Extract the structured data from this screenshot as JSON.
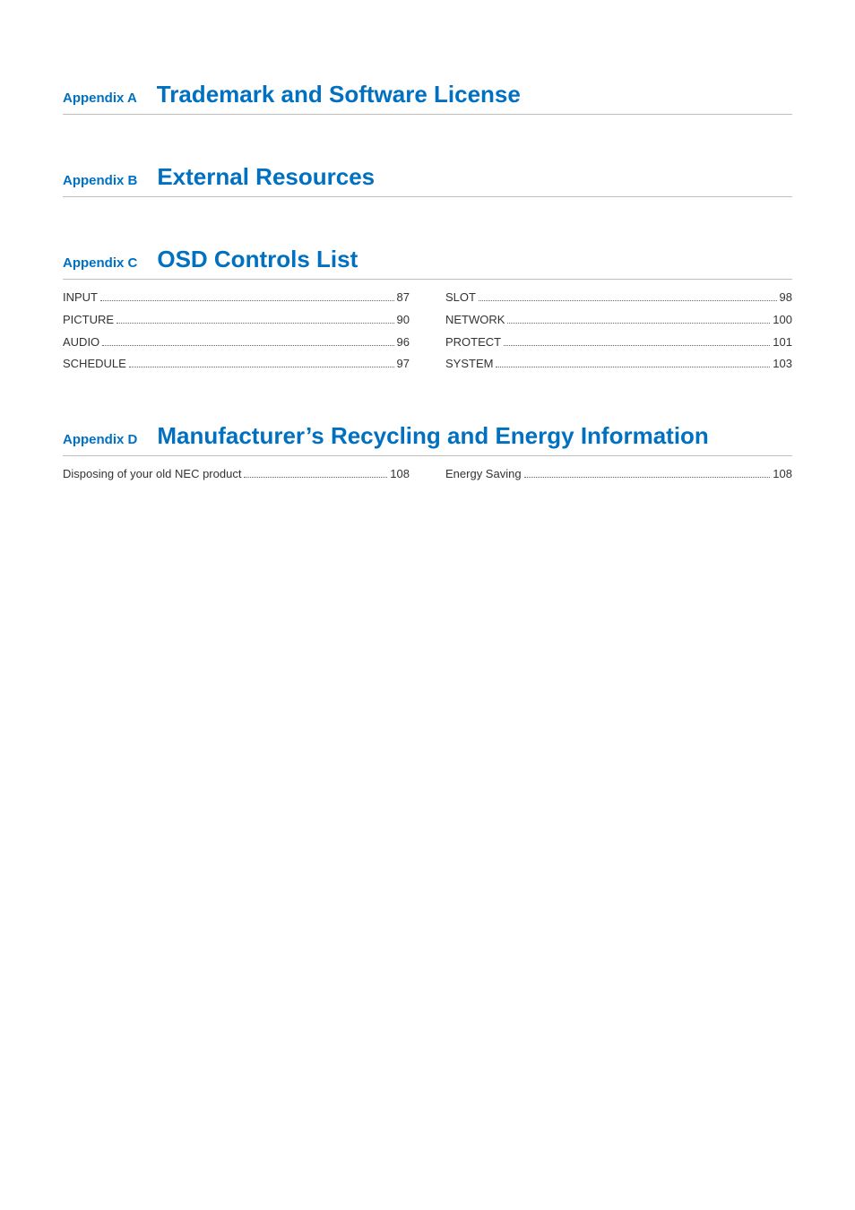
{
  "colors": {
    "heading_blue": "#0070c0",
    "text_body": "#333333",
    "rule_gray": "#bfbfbf",
    "dot_gray": "#666666",
    "background": "#ffffff"
  },
  "typography": {
    "appendix_label_fontsize": 15,
    "appendix_title_fontsize": 26,
    "toc_fontsize": 13,
    "font_family": "Arial, Helvetica, sans-serif"
  },
  "sections": [
    {
      "label": "Appendix A",
      "title": "Trademark and Software License",
      "toc": []
    },
    {
      "label": "Appendix B",
      "title": "External Resources",
      "toc": []
    },
    {
      "label": "Appendix C",
      "title": "OSD Controls List",
      "toc": [
        {
          "label": "INPUT",
          "page": "87"
        },
        {
          "label": "PICTURE",
          "page": "90"
        },
        {
          "label": "AUDIO",
          "page": "96"
        },
        {
          "label": "SCHEDULE",
          "page": "97"
        },
        {
          "label": "SLOT",
          "page": "98"
        },
        {
          "label": "NETWORK",
          "page": "100"
        },
        {
          "label": "PROTECT",
          "page": "101"
        },
        {
          "label": "SYSTEM",
          "page": "103"
        }
      ]
    },
    {
      "label": "Appendix D",
      "title": "Manufacturer’s Recycling and Energy Information",
      "toc": [
        {
          "label": "Disposing of your old NEC product",
          "page": "108"
        },
        {
          "label": "Energy Saving",
          "page": "108"
        }
      ]
    }
  ]
}
